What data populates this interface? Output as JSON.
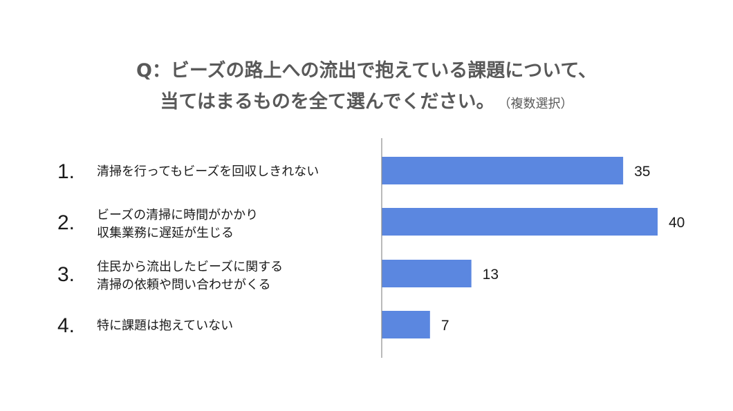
{
  "chart_data": {
    "type": "bar",
    "orientation": "horizontal",
    "title": "Q：ビーズの路上への流出で抱えている課題について、",
    "title_line2": "当てはまるものを全て選んでください。",
    "title_note": "（複数選択）",
    "categories": [
      {
        "num": "1.",
        "lines": [
          "清掃を行ってもビーズを回収しきれない"
        ]
      },
      {
        "num": "2.",
        "lines": [
          "ビーズの清掃に時間がかかり",
          "収集業務に遅延が生じる"
        ]
      },
      {
        "num": "3.",
        "lines": [
          "住民から流出したビーズに関する",
          "清掃の依頼や問い合わせがくる"
        ]
      },
      {
        "num": "4.",
        "lines": [
          "特に課題は抱えていない"
        ]
      }
    ],
    "values": [
      35,
      40,
      13,
      7
    ],
    "xlim": [
      0,
      40
    ],
    "grid": false,
    "legend": "none",
    "bar_color": "#5b87e0"
  }
}
